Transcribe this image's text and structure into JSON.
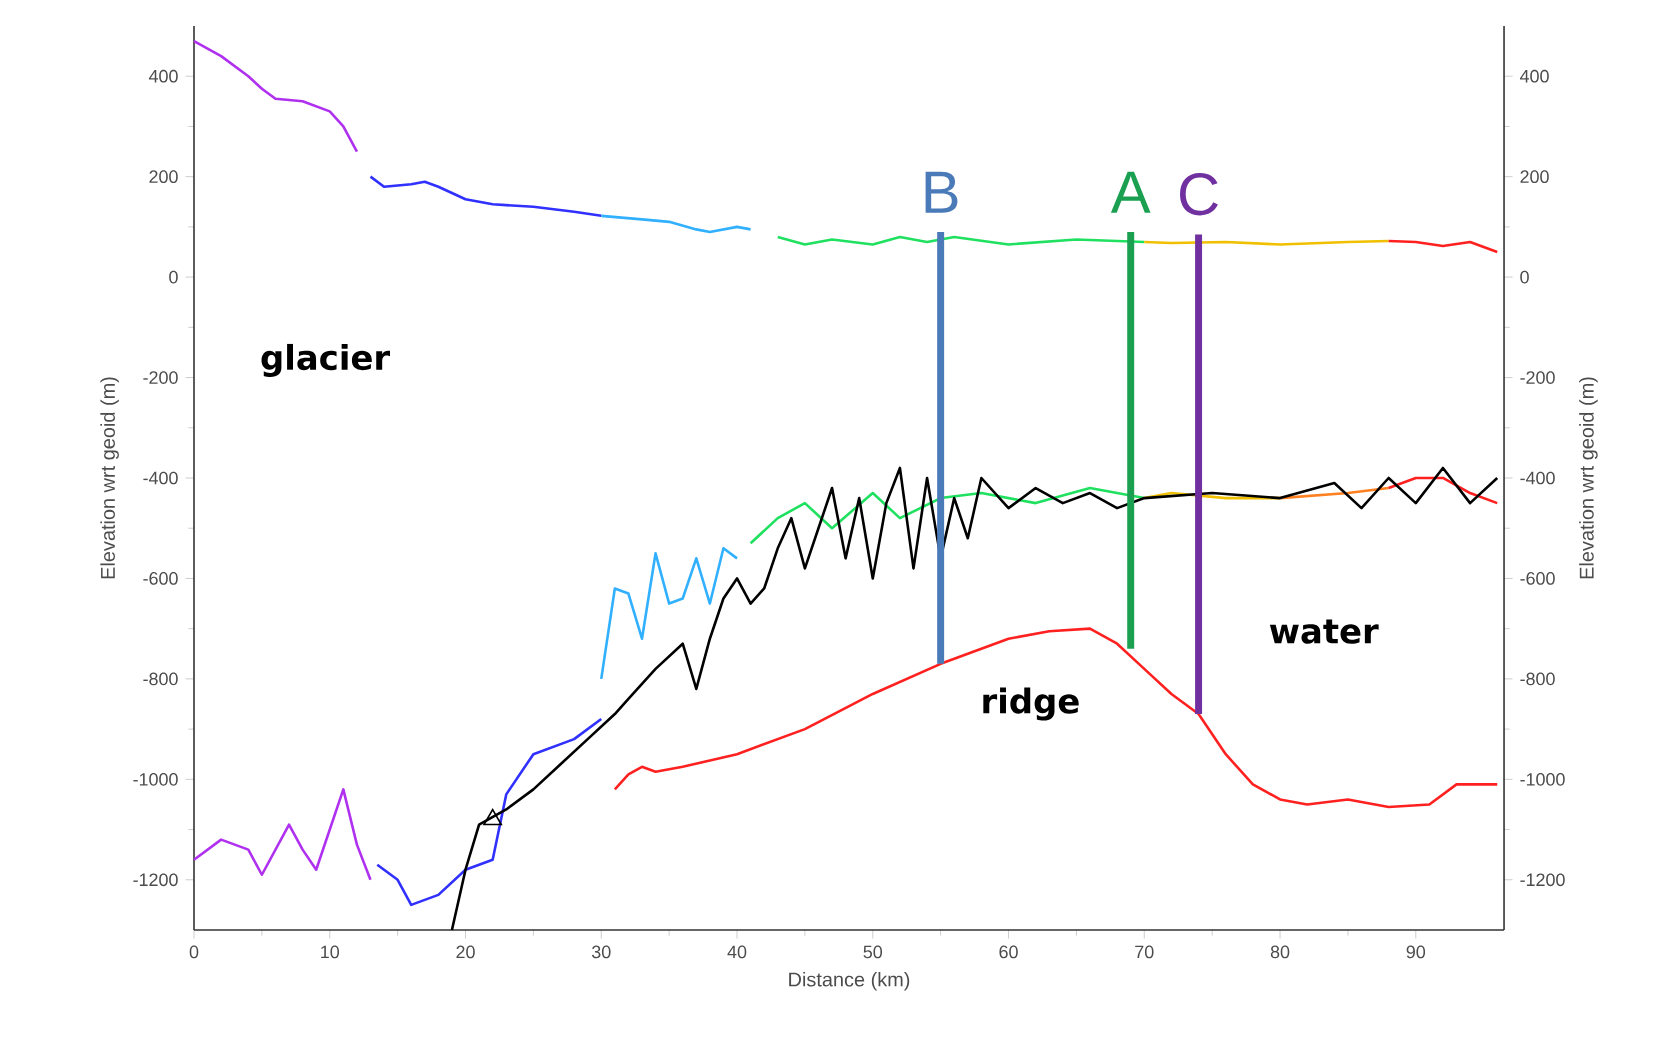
{
  "chart_data": {
    "type": "line",
    "xlabel": "Distance (km)",
    "ylabel": "Elevation wrt geoid (m)",
    "y2label": "Elevation wrt geoid (m)",
    "xlim": [
      0,
      96.5
    ],
    "ylim": [
      -1300,
      500
    ],
    "y2lim": [
      -1300,
      500
    ],
    "xticks": [
      0,
      10,
      20,
      30,
      40,
      50,
      60,
      70,
      80,
      90
    ],
    "yticks": [
      -1200,
      -1000,
      -800,
      -600,
      -400,
      -200,
      0,
      200,
      400
    ],
    "y2ticks": [
      -1200,
      -1000,
      -800,
      -600,
      -400,
      -200,
      0,
      200,
      400
    ],
    "grid": false,
    "annotations": [
      "glacier",
      "ridge",
      "water"
    ],
    "series": [
      {
        "color": "#b030f0",
        "x": [
          0,
          2,
          4,
          5,
          6,
          8,
          10,
          11,
          12
        ],
        "values": [
          470,
          440,
          400,
          375,
          355,
          350,
          330,
          300,
          250
        ]
      },
      {
        "color": "#3030ff",
        "x": [
          13,
          14,
          16,
          17,
          18,
          20,
          22,
          25,
          28,
          30
        ],
        "values": [
          200,
          180,
          185,
          190,
          180,
          155,
          145,
          140,
          130,
          122
        ]
      },
      {
        "color": "#30b0ff",
        "x": [
          30,
          33,
          35,
          37,
          38,
          40,
          41
        ],
        "values": [
          122,
          115,
          110,
          95,
          90,
          100,
          95
        ]
      },
      {
        "color": "#20e060",
        "x": [
          43,
          45,
          47,
          50,
          52,
          54,
          56,
          60,
          65,
          70
        ],
        "values": [
          80,
          65,
          75,
          65,
          80,
          70,
          80,
          65,
          75,
          70
        ]
      },
      {
        "color": "#f0c000",
        "x": [
          70,
          72,
          76,
          80,
          85,
          88
        ],
        "values": [
          70,
          68,
          70,
          65,
          70,
          72
        ]
      },
      {
        "color": "#ff2020",
        "x": [
          88,
          90,
          92,
          94,
          96
        ],
        "values": [
          72,
          70,
          62,
          70,
          50
        ]
      },
      {
        "color": "#b030f0",
        "x": [
          0,
          2,
          4,
          5,
          7,
          8,
          9,
          11,
          12,
          13
        ],
        "values": [
          -1160,
          -1120,
          -1140,
          -1190,
          -1090,
          -1140,
          -1180,
          -1020,
          -1130,
          -1200
        ]
      },
      {
        "color": "#3030ff",
        "x": [
          13.5,
          15,
          16,
          18,
          20,
          22,
          23,
          25,
          28,
          30
        ],
        "values": [
          -1170,
          -1200,
          -1250,
          -1230,
          -1180,
          -1160,
          -1030,
          -950,
          -920,
          -880
        ]
      },
      {
        "color": "#30b0ff",
        "x": [
          30,
          31,
          32,
          33,
          34,
          35,
          36,
          37,
          38,
          39,
          40
        ],
        "values": [
          -800,
          -620,
          -630,
          -720,
          -550,
          -650,
          -640,
          -560,
          -650,
          -540,
          -560
        ]
      },
      {
        "color": "#20e060",
        "x": [
          41,
          43,
          45,
          47,
          50,
          52,
          55,
          58,
          62,
          66,
          70
        ],
        "values": [
          -530,
          -480,
          -450,
          -500,
          -430,
          -480,
          -440,
          -430,
          -450,
          -420,
          -440
        ]
      },
      {
        "color": "#f0c000",
        "x": [
          70,
          72,
          76,
          80
        ],
        "values": [
          -440,
          -430,
          -440,
          -440
        ]
      },
      {
        "color": "#ff8020",
        "x": [
          80,
          85,
          88
        ],
        "values": [
          -440,
          -430,
          -420
        ]
      },
      {
        "color": "#ff2020",
        "x": [
          88,
          90,
          92,
          94,
          96
        ],
        "values": [
          -420,
          -400,
          -400,
          -430,
          -450
        ]
      },
      {
        "color": "#000000",
        "x": [
          19,
          20,
          21,
          23,
          25,
          27,
          29,
          31,
          32,
          34,
          36,
          37,
          38,
          39,
          40,
          41,
          42,
          43,
          44,
          45,
          46,
          47,
          48,
          49,
          50,
          51,
          52,
          53,
          54,
          55,
          56,
          57,
          58,
          60,
          62,
          64,
          66,
          68,
          70,
          75,
          80,
          84,
          86,
          88,
          90,
          92,
          94,
          96
        ],
        "values": [
          -1300,
          -1180,
          -1090,
          -1060,
          -1020,
          -970,
          -920,
          -870,
          -840,
          -780,
          -730,
          -820,
          -720,
          -640,
          -600,
          -650,
          -620,
          -540,
          -480,
          -580,
          -500,
          -420,
          -560,
          -440,
          -600,
          -450,
          -380,
          -580,
          -400,
          -560,
          -440,
          -520,
          -400,
          -460,
          -420,
          -450,
          -430,
          -460,
          -440,
          -430,
          -440,
          -410,
          -460,
          -400,
          -450,
          -380,
          -450,
          -400
        ]
      },
      {
        "color": "#ff2020",
        "x": [
          31,
          32,
          33,
          34,
          36,
          40,
          45,
          50,
          55,
          60,
          63,
          66,
          68,
          70,
          72,
          74,
          76,
          78,
          80,
          82,
          85,
          88,
          91,
          93,
          96
        ],
        "values": [
          -1020,
          -990,
          -975,
          -985,
          -975,
          -950,
          -900,
          -830,
          -770,
          -720,
          -705,
          -700,
          -730,
          -780,
          -830,
          -870,
          -950,
          -1010,
          -1040,
          -1050,
          -1040,
          -1055,
          -1050,
          -1010,
          -1010
        ]
      },
      {
        "type": "scatter",
        "marker": "triangle",
        "color": "#000000",
        "x": [
          22
        ],
        "values": [
          -1080
        ]
      },
      {
        "name": "B",
        "color": "#4a7ab8",
        "x": [
          55,
          55
        ],
        "values": [
          -770,
          90
        ]
      },
      {
        "name": "A",
        "color": "#1aa050",
        "x": [
          69,
          69
        ],
        "values": [
          -740,
          90
        ]
      },
      {
        "name": "C",
        "color": "#7030a0",
        "x": [
          74,
          74
        ],
        "values": [
          -870,
          85
        ]
      }
    ]
  }
}
